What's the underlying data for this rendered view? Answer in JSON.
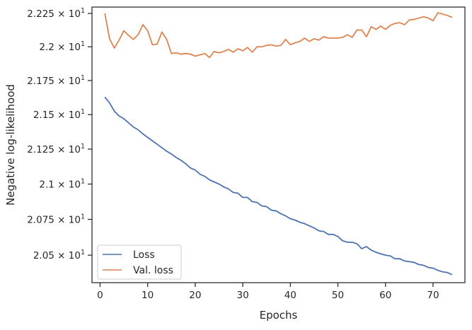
{
  "chart_data": {
    "type": "line",
    "title": "",
    "xlabel": "Epochs",
    "ylabel": "Negative log-likelihood",
    "xlim": [
      -1.7,
      76.7
    ],
    "ylim": [
      20.31,
      22.298
    ],
    "yscale": "log",
    "grid": false,
    "legend_placement": "lower-left",
    "x_ticks": [
      {
        "value": 0,
        "label": "0"
      },
      {
        "value": 10,
        "label": "10"
      },
      {
        "value": 20,
        "label": "20"
      },
      {
        "value": 30,
        "label": "30"
      },
      {
        "value": 40,
        "label": "40"
      },
      {
        "value": 50,
        "label": "50"
      },
      {
        "value": 60,
        "label": "60"
      },
      {
        "value": 70,
        "label": "70"
      }
    ],
    "y_ticks": [
      {
        "value": 22.25,
        "mantissa": "2.225",
        "base": "10",
        "exp": "1"
      },
      {
        "value": 22.0,
        "mantissa": "2.2",
        "base": "10",
        "exp": "1"
      },
      {
        "value": 21.75,
        "mantissa": "2.175",
        "base": "10",
        "exp": "1"
      },
      {
        "value": 21.5,
        "mantissa": "2.15",
        "base": "10",
        "exp": "1"
      },
      {
        "value": 21.25,
        "mantissa": "2.125",
        "base": "10",
        "exp": "1"
      },
      {
        "value": 21.0,
        "mantissa": "2.1",
        "base": "10",
        "exp": "1"
      },
      {
        "value": 20.75,
        "mantissa": "2.075",
        "base": "10",
        "exp": "1"
      },
      {
        "value": 20.5,
        "mantissa": "2.05",
        "base": "10",
        "exp": "1"
      }
    ],
    "series": [
      {
        "name": "Loss",
        "color": "#4c72b0",
        "x": [
          1,
          2,
          3,
          4,
          5,
          6,
          7,
          8,
          9,
          10,
          11,
          12,
          13,
          14,
          15,
          16,
          17,
          18,
          19,
          20,
          21,
          22,
          23,
          24,
          25,
          26,
          27,
          28,
          29,
          30,
          31,
          32,
          33,
          34,
          35,
          36,
          37,
          38,
          39,
          40,
          41,
          42,
          43,
          44,
          45,
          46,
          47,
          48,
          49,
          50,
          51,
          52,
          53,
          54,
          55,
          56,
          57,
          58,
          59,
          60,
          61,
          62,
          63,
          64,
          65,
          66,
          67,
          68,
          69,
          70,
          71,
          72,
          73,
          74
        ],
        "y": [
          21.628,
          21.585,
          21.525,
          21.49,
          21.47,
          21.44,
          21.41,
          21.39,
          21.36,
          21.335,
          21.31,
          21.285,
          21.26,
          21.235,
          21.215,
          21.19,
          21.17,
          21.145,
          21.115,
          21.1,
          21.07,
          21.055,
          21.03,
          21.015,
          21.0,
          20.98,
          20.965,
          20.94,
          20.935,
          20.905,
          20.905,
          20.875,
          20.87,
          20.845,
          20.84,
          20.815,
          20.81,
          20.79,
          20.775,
          20.755,
          20.745,
          20.73,
          20.72,
          20.705,
          20.69,
          20.67,
          20.665,
          20.645,
          20.645,
          20.63,
          20.6,
          20.59,
          20.59,
          20.58,
          20.545,
          20.56,
          20.535,
          20.52,
          20.51,
          20.5,
          20.495,
          20.475,
          20.475,
          20.46,
          20.455,
          20.45,
          20.435,
          20.43,
          20.415,
          20.41,
          20.395,
          20.385,
          20.38,
          20.365
        ]
      },
      {
        "name": "Val. loss",
        "color": "#dd8452",
        "x": [
          1,
          2,
          3,
          4,
          5,
          6,
          7,
          8,
          9,
          10,
          11,
          12,
          13,
          14,
          15,
          16,
          17,
          18,
          19,
          20,
          21,
          22,
          23,
          24,
          25,
          26,
          27,
          28,
          29,
          30,
          31,
          32,
          33,
          34,
          35,
          36,
          37,
          38,
          39,
          40,
          41,
          42,
          43,
          44,
          45,
          46,
          47,
          48,
          49,
          50,
          51,
          52,
          53,
          54,
          55,
          56,
          57,
          58,
          59,
          60,
          61,
          62,
          63,
          64,
          65,
          66,
          67,
          68,
          69,
          70,
          71,
          72,
          73,
          74
        ],
        "y": [
          22.25,
          22.06,
          21.99,
          22.05,
          22.12,
          22.085,
          22.055,
          22.09,
          22.165,
          22.12,
          22.015,
          22.02,
          22.11,
          22.055,
          21.95,
          21.955,
          21.945,
          21.95,
          21.945,
          21.93,
          21.94,
          21.95,
          21.92,
          21.965,
          21.955,
          21.965,
          21.98,
          21.96,
          21.985,
          21.97,
          21.995,
          21.96,
          22.0,
          22.0,
          22.01,
          22.015,
          22.005,
          22.01,
          22.055,
          22.015,
          22.03,
          22.04,
          22.065,
          22.04,
          22.06,
          22.05,
          22.075,
          22.065,
          22.065,
          22.065,
          22.07,
          22.09,
          22.07,
          22.125,
          22.125,
          22.075,
          22.15,
          22.13,
          22.155,
          22.13,
          22.16,
          22.175,
          22.18,
          22.165,
          22.2,
          22.205,
          22.215,
          22.225,
          22.215,
          22.195,
          22.255,
          22.245,
          22.235,
          22.22
        ]
      }
    ]
  }
}
